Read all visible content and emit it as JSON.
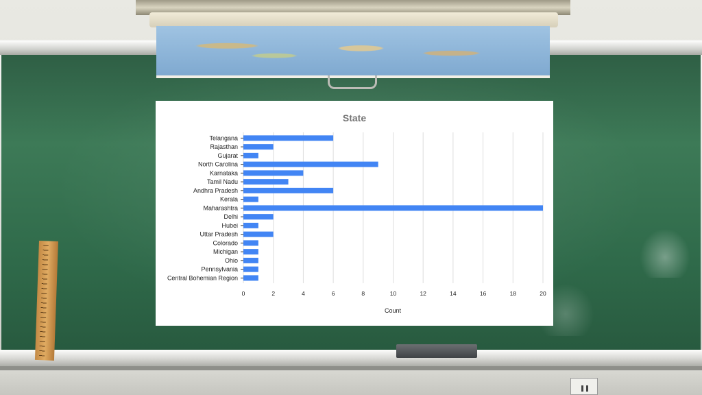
{
  "chart_data": {
    "type": "bar",
    "orientation": "horizontal",
    "title": "State",
    "xlabel": "Count",
    "ylabel": "",
    "categories": [
      "Telangana",
      "Rajasthan",
      "Gujarat",
      "North Carolina",
      "Karnataka",
      "Tamil Nadu",
      "Andhra Pradesh",
      "Kerala",
      "Maharashtra",
      "Delhi",
      "Hubei",
      "Uttar Pradesh",
      "Colorado",
      "Michigan",
      "Ohio",
      "Pennsylvania",
      "Central Bohemian Region"
    ],
    "values": [
      6,
      2,
      1,
      9,
      4,
      3,
      6,
      1,
      20,
      2,
      1,
      2,
      1,
      1,
      1,
      1,
      1
    ],
    "xlim": [
      0,
      20
    ],
    "x_ticks": [
      0,
      2,
      4,
      6,
      8,
      10,
      12,
      14,
      16,
      18,
      20
    ],
    "grid": true,
    "bar_color": "#4285f4",
    "grid_color": "#dddddd"
  }
}
